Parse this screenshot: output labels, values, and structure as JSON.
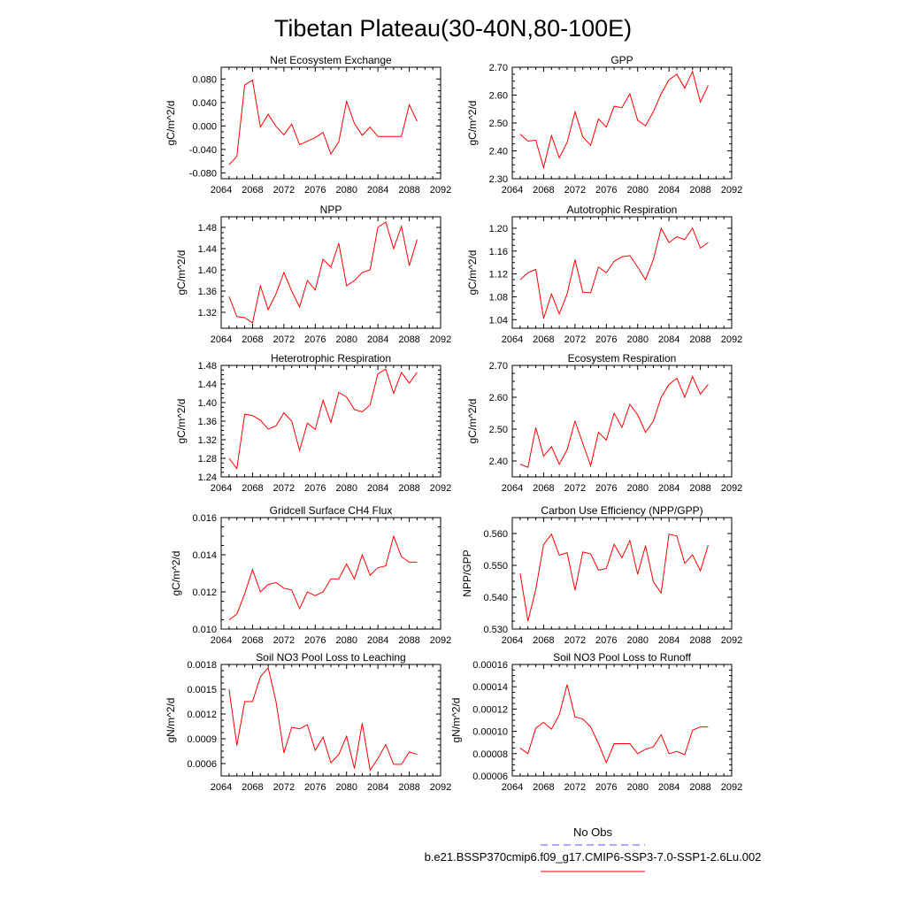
{
  "figure": {
    "title": "Tibetan Plateau(30-40N,80-100E)",
    "legend": {
      "entries": [
        {
          "label": "No Obs",
          "color": "#5a5aff",
          "dash": true
        },
        {
          "label": "b.e21.BSSP370cmip6.f09_g17.CMIP6-SSP3-7.0-SSP1-2.6Lu.002",
          "color": "#ff0000",
          "dash": false
        }
      ]
    },
    "line_color": "#ff0000"
  },
  "chart_data": [
    {
      "type": "line",
      "title": "Net Ecosystem Exchange",
      "ylabel": "gC/m^2/d",
      "xlim": [
        2064,
        2092
      ],
      "xticks": [
        "2064",
        "2068",
        "2072",
        "2076",
        "2080",
        "2084",
        "2088",
        "2092"
      ],
      "ylim": [
        -0.09,
        0.1
      ],
      "yticks": [
        -0.08,
        -0.04,
        0.0,
        0.04,
        0.08
      ],
      "ytick_labels": [
        "-0.080",
        "-0.040",
        "0.000",
        "0.040",
        "0.080"
      ],
      "x": [
        2065,
        2066,
        2067,
        2068,
        2069,
        2070,
        2071,
        2072,
        2073,
        2074,
        2075,
        2076,
        2077,
        2078,
        2079,
        2080,
        2081,
        2082,
        2083,
        2084,
        2085,
        2086,
        2087,
        2088,
        2089
      ],
      "series": [
        {
          "values": [
            -0.066,
            -0.052,
            0.07,
            0.078,
            -0.002,
            0.02,
            -0.001,
            -0.015,
            0.003,
            -0.032,
            -0.026,
            -0.02,
            -0.011,
            -0.048,
            -0.027,
            0.042,
            0.004,
            -0.016,
            -0.002,
            -0.018,
            -0.018,
            -0.018,
            -0.018,
            0.036,
            0.008
          ]
        }
      ]
    },
    {
      "type": "line",
      "title": "GPP",
      "ylabel": "gC/m^2/d",
      "xlim": [
        2064,
        2092
      ],
      "xticks": [
        "2064",
        "2068",
        "2072",
        "2076",
        "2080",
        "2084",
        "2088",
        "2092"
      ],
      "ylim": [
        2.3,
        2.7
      ],
      "yticks": [
        2.3,
        2.4,
        2.5,
        2.6,
        2.7
      ],
      "ytick_labels": [
        "2.30",
        "2.40",
        "2.50",
        "2.60",
        "2.70"
      ],
      "x": [
        2065,
        2066,
        2067,
        2068,
        2069,
        2070,
        2071,
        2072,
        2073,
        2074,
        2075,
        2076,
        2077,
        2078,
        2079,
        2080,
        2081,
        2082,
        2083,
        2084,
        2085,
        2086,
        2087,
        2088,
        2089
      ],
      "series": [
        {
          "values": [
            2.46,
            2.435,
            2.438,
            2.34,
            2.455,
            2.375,
            2.43,
            2.54,
            2.45,
            2.42,
            2.515,
            2.485,
            2.56,
            2.555,
            2.605,
            2.51,
            2.49,
            2.54,
            2.605,
            2.655,
            2.675,
            2.625,
            2.685,
            2.575,
            2.635
          ]
        }
      ]
    },
    {
      "type": "line",
      "title": "NPP",
      "ylabel": "gC/m^2/d",
      "xlim": [
        2064,
        2092
      ],
      "xticks": [
        "2064",
        "2068",
        "2072",
        "2076",
        "2080",
        "2084",
        "2088",
        "2092"
      ],
      "ylim": [
        1.29,
        1.5
      ],
      "yticks": [
        1.32,
        1.36,
        1.4,
        1.44,
        1.48
      ],
      "ytick_labels": [
        "1.32",
        "1.36",
        "1.40",
        "1.44",
        "1.48"
      ],
      "x": [
        2065,
        2066,
        2067,
        2068,
        2069,
        2070,
        2071,
        2072,
        2073,
        2074,
        2075,
        2076,
        2077,
        2078,
        2079,
        2080,
        2081,
        2082,
        2083,
        2084,
        2085,
        2086,
        2087,
        2088,
        2089
      ],
      "series": [
        {
          "values": [
            1.35,
            1.312,
            1.31,
            1.3,
            1.37,
            1.325,
            1.355,
            1.395,
            1.36,
            1.33,
            1.38,
            1.362,
            1.42,
            1.405,
            1.45,
            1.37,
            1.38,
            1.395,
            1.4,
            1.48,
            1.49,
            1.44,
            1.482,
            1.408,
            1.457
          ]
        }
      ]
    },
    {
      "type": "line",
      "title": "Autotrophic Respiration",
      "ylabel": "gC/m^2/d",
      "xlim": [
        2064,
        2092
      ],
      "xticks": [
        "2064",
        "2068",
        "2072",
        "2076",
        "2080",
        "2084",
        "2088",
        "2092"
      ],
      "ylim": [
        1.025,
        1.22
      ],
      "yticks": [
        1.04,
        1.08,
        1.12,
        1.16,
        1.2
      ],
      "ytick_labels": [
        "1.04",
        "1.08",
        "1.12",
        "1.16",
        "1.20"
      ],
      "x": [
        2065,
        2066,
        2067,
        2068,
        2069,
        2070,
        2071,
        2072,
        2073,
        2074,
        2075,
        2076,
        2077,
        2078,
        2079,
        2080,
        2081,
        2082,
        2083,
        2084,
        2085,
        2086,
        2087,
        2088,
        2089
      ],
      "series": [
        {
          "values": [
            1.11,
            1.122,
            1.128,
            1.042,
            1.085,
            1.05,
            1.085,
            1.145,
            1.088,
            1.087,
            1.132,
            1.122,
            1.142,
            1.15,
            1.152,
            1.132,
            1.11,
            1.145,
            1.2,
            1.175,
            1.185,
            1.18,
            1.2,
            1.165,
            1.175
          ]
        }
      ]
    },
    {
      "type": "line",
      "title": "Heterotrophic Respiration",
      "ylabel": "gC/m^2/d",
      "xlim": [
        2064,
        2092
      ],
      "xticks": [
        "2064",
        "2068",
        "2072",
        "2076",
        "2080",
        "2084",
        "2088",
        "2092"
      ],
      "ylim": [
        1.24,
        1.48
      ],
      "yticks": [
        1.24,
        1.28,
        1.32,
        1.36,
        1.4,
        1.44,
        1.48
      ],
      "ytick_labels": [
        "1.24",
        "1.28",
        "1.32",
        "1.36",
        "1.40",
        "1.44",
        "1.48"
      ],
      "x": [
        2065,
        2066,
        2067,
        2068,
        2069,
        2070,
        2071,
        2072,
        2073,
        2074,
        2075,
        2076,
        2077,
        2078,
        2079,
        2080,
        2081,
        2082,
        2083,
        2084,
        2085,
        2086,
        2087,
        2088,
        2089
      ],
      "series": [
        {
          "values": [
            1.28,
            1.258,
            1.375,
            1.372,
            1.362,
            1.343,
            1.35,
            1.378,
            1.36,
            1.297,
            1.356,
            1.342,
            1.405,
            1.357,
            1.422,
            1.412,
            1.385,
            1.38,
            1.395,
            1.462,
            1.472,
            1.42,
            1.465,
            1.442,
            1.465
          ]
        }
      ]
    },
    {
      "type": "line",
      "title": "Ecosystem Respiration",
      "ylabel": "gC/m^2/d",
      "xlim": [
        2064,
        2092
      ],
      "xticks": [
        "2064",
        "2068",
        "2072",
        "2076",
        "2080",
        "2084",
        "2088",
        "2092"
      ],
      "ylim": [
        2.35,
        2.7
      ],
      "yticks": [
        2.4,
        2.5,
        2.6,
        2.7
      ],
      "ytick_labels": [
        "2.40",
        "2.50",
        "2.60",
        "2.70"
      ],
      "x": [
        2065,
        2066,
        2067,
        2068,
        2069,
        2070,
        2071,
        2072,
        2073,
        2074,
        2075,
        2076,
        2077,
        2078,
        2079,
        2080,
        2081,
        2082,
        2083,
        2084,
        2085,
        2086,
        2087,
        2088,
        2089
      ],
      "series": [
        {
          "values": [
            2.39,
            2.38,
            2.505,
            2.415,
            2.445,
            2.39,
            2.435,
            2.525,
            2.455,
            2.385,
            2.49,
            2.465,
            2.55,
            2.505,
            2.578,
            2.545,
            2.49,
            2.525,
            2.6,
            2.64,
            2.66,
            2.6,
            2.665,
            2.61,
            2.64
          ]
        }
      ]
    },
    {
      "type": "line",
      "title": "Gridcell Surface CH4 Flux",
      "ylabel": "gC/m^2/d",
      "xlim": [
        2064,
        2092
      ],
      "xticks": [
        "2064",
        "2068",
        "2072",
        "2076",
        "2080",
        "2084",
        "2088",
        "2092"
      ],
      "ylim": [
        0.01,
        0.016
      ],
      "yticks": [
        0.01,
        0.012,
        0.014,
        0.016
      ],
      "ytick_labels": [
        "0.010",
        "0.012",
        "0.014",
        "0.016"
      ],
      "x": [
        2065,
        2066,
        2067,
        2068,
        2069,
        2070,
        2071,
        2072,
        2073,
        2074,
        2075,
        2076,
        2077,
        2078,
        2079,
        2080,
        2081,
        2082,
        2083,
        2084,
        2085,
        2086,
        2087,
        2088,
        2089
      ],
      "series": [
        {
          "values": [
            0.0105,
            0.0108,
            0.0119,
            0.0132,
            0.012,
            0.0124,
            0.0125,
            0.0122,
            0.0121,
            0.0111,
            0.012,
            0.0118,
            0.012,
            0.0127,
            0.0127,
            0.0135,
            0.0127,
            0.014,
            0.0129,
            0.0133,
            0.0134,
            0.015,
            0.0139,
            0.0136,
            0.0136
          ]
        }
      ]
    },
    {
      "type": "line",
      "title": "Carbon Use Efficiency (NPP/GPP)",
      "ylabel": "NPP/GPP",
      "xlim": [
        2064,
        2092
      ],
      "xticks": [
        "2064",
        "2068",
        "2072",
        "2076",
        "2080",
        "2084",
        "2088",
        "2092"
      ],
      "ylim": [
        0.53,
        0.565
      ],
      "yticks": [
        0.53,
        0.54,
        0.55,
        0.56
      ],
      "ytick_labels": [
        "0.530",
        "0.540",
        "0.550",
        "0.560"
      ],
      "x": [
        2065,
        2066,
        2067,
        2068,
        2069,
        2070,
        2071,
        2072,
        2073,
        2074,
        2075,
        2076,
        2077,
        2078,
        2079,
        2080,
        2081,
        2082,
        2083,
        2084,
        2085,
        2086,
        2087,
        2088,
        2089
      ],
      "series": [
        {
          "values": [
            0.5475,
            0.5325,
            0.5425,
            0.5565,
            0.5598,
            0.5532,
            0.554,
            0.5422,
            0.5542,
            0.5536,
            0.5485,
            0.549,
            0.5566,
            0.5524,
            0.5578,
            0.5472,
            0.5562,
            0.5449,
            0.5413,
            0.5598,
            0.5592,
            0.5506,
            0.5533,
            0.5483,
            0.5563
          ]
        }
      ]
    },
    {
      "type": "line",
      "title": "Soil NO3 Pool Loss to Leaching",
      "ylabel": "gN/m^2/d",
      "xlim": [
        2064,
        2092
      ],
      "xticks": [
        "2064",
        "2068",
        "2072",
        "2076",
        "2080",
        "2084",
        "2088",
        "2092"
      ],
      "ylim": [
        0.00045,
        0.0018
      ],
      "yticks": [
        0.0006,
        0.0009,
        0.0012,
        0.0015,
        0.0018
      ],
      "ytick_labels": [
        "0.0006",
        "0.0009",
        "0.0012",
        "0.0015",
        "0.0018"
      ],
      "x": [
        2065,
        2066,
        2067,
        2068,
        2069,
        2070,
        2071,
        2072,
        2073,
        2074,
        2075,
        2076,
        2077,
        2078,
        2079,
        2080,
        2081,
        2082,
        2083,
        2084,
        2085,
        2086,
        2087,
        2088,
        2089
      ],
      "series": [
        {
          "values": [
            0.0015,
            0.00082,
            0.00135,
            0.00135,
            0.00165,
            0.00176,
            0.00135,
            0.00073,
            0.00104,
            0.00102,
            0.00107,
            0.00076,
            0.00092,
            0.00061,
            0.00071,
            0.00093,
            0.00054,
            0.00109,
            0.00052,
            0.00066,
            0.00083,
            0.00059,
            0.00059,
            0.00074,
            0.00071
          ]
        }
      ]
    },
    {
      "type": "line",
      "title": "Soil NO3 Pool Loss to Runoff",
      "ylabel": "gN/m^2/d",
      "xlim": [
        2064,
        2092
      ],
      "xticks": [
        "2064",
        "2068",
        "2072",
        "2076",
        "2080",
        "2084",
        "2088",
        "2092"
      ],
      "ylim": [
        6e-05,
        0.00016
      ],
      "yticks": [
        6e-05,
        8e-05,
        0.0001,
        0.00012,
        0.00014,
        0.00016
      ],
      "ytick_labels": [
        "0.00006",
        "0.00008",
        "0.00010",
        "0.00012",
        "0.00014",
        "0.00016"
      ],
      "x": [
        2065,
        2066,
        2067,
        2068,
        2069,
        2070,
        2071,
        2072,
        2073,
        2074,
        2075,
        2076,
        2077,
        2078,
        2079,
        2080,
        2081,
        2082,
        2083,
        2084,
        2085,
        2086,
        2087,
        2088,
        2089
      ],
      "series": [
        {
          "values": [
            8.5e-05,
            8e-05,
            0.000103,
            0.000108,
            0.000102,
            0.000115,
            0.000142,
            0.000113,
            0.000111,
            0.000104,
            8.9e-05,
            7.2e-05,
            8.9e-05,
            8.9e-05,
            8.9e-05,
            8e-05,
            8.4e-05,
            8.6e-05,
            9.7e-05,
            8e-05,
            8.2e-05,
            7.9e-05,
            0.000101,
            0.000104,
            0.000104
          ]
        }
      ]
    }
  ]
}
